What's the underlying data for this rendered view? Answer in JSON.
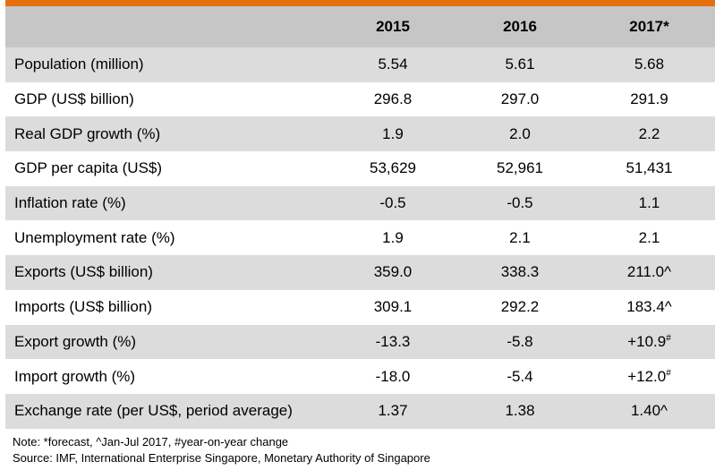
{
  "table": {
    "columns": [
      "",
      "2015",
      "2016",
      "2017*"
    ],
    "rows": [
      {
        "label": "Population (million)",
        "values": [
          "5.54",
          "5.61",
          "5.68"
        ],
        "sup": ""
      },
      {
        "label": "GDP (US$ billion)",
        "values": [
          "296.8",
          "297.0",
          "291.9"
        ],
        "sup": ""
      },
      {
        "label": "Real GDP growth (%)",
        "values": [
          "1.9",
          "2.0",
          "2.2"
        ],
        "sup": ""
      },
      {
        "label": "GDP per capita (US$)",
        "values": [
          "53,629",
          "52,961",
          "51,431"
        ],
        "sup": ""
      },
      {
        "label": "Inflation rate (%)",
        "values": [
          "-0.5",
          "-0.5",
          "1.1"
        ],
        "sup": ""
      },
      {
        "label": "Unemployment rate (%)",
        "values": [
          "1.9",
          "2.1",
          "2.1"
        ],
        "sup": ""
      },
      {
        "label": "Exports (US$ billion)",
        "values": [
          "359.0",
          "338.3",
          "211.0^"
        ],
        "sup": ""
      },
      {
        "label": "Imports (US$ billion)",
        "values": [
          "309.1",
          "292.2",
          "183.4^"
        ],
        "sup": ""
      },
      {
        "label": "Export growth (%)",
        "values": [
          "-13.3",
          "-5.8",
          "+10.9"
        ],
        "sup": "#"
      },
      {
        "label": "Import growth (%)",
        "values": [
          "-18.0",
          "-5.4",
          "+12.0"
        ],
        "sup": "#"
      },
      {
        "label": "Exchange rate (per US$, period average)",
        "values": [
          "1.37",
          "1.38",
          "1.40^"
        ],
        "sup": ""
      }
    ]
  },
  "notes": {
    "note": "Note: *forecast, ^Jan-Jul 2017, #year-on-year change",
    "source": "Source: IMF, International Enterprise Singapore, Monetary Authority of Singapore"
  },
  "colors": {
    "accent": "#e5700e",
    "header_bg": "#c6c6c6",
    "shaded_row_bg": "#dcdcdc"
  }
}
